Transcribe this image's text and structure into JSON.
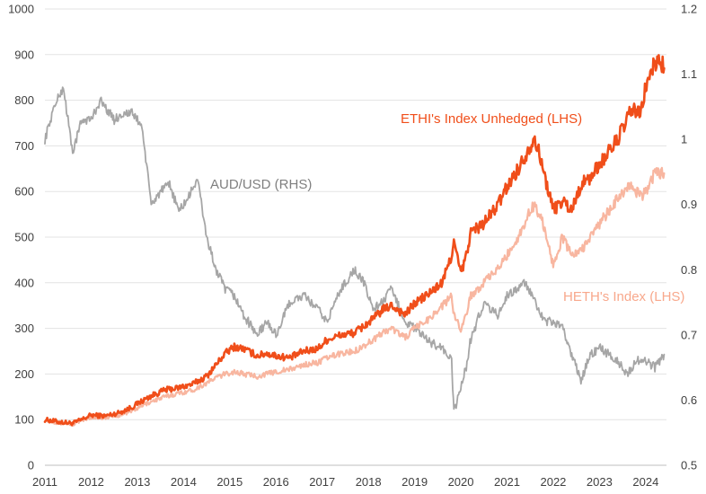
{
  "chart_data": {
    "type": "line",
    "title": "",
    "xlabel": "",
    "ylabel": "",
    "y2label": "",
    "x_ticks": [
      "2011",
      "2012",
      "2013",
      "2014",
      "2015",
      "2016",
      "2017",
      "2018",
      "2019",
      "2020",
      "2021",
      "2022",
      "2023",
      "2024"
    ],
    "y_left_ticks": [
      "0",
      "100",
      "200",
      "300",
      "400",
      "500",
      "600",
      "700",
      "800",
      "900",
      "1000"
    ],
    "y_right_ticks": [
      "0.5",
      "0.6",
      "0.7",
      "0.8",
      "0.9",
      "1",
      "1.1",
      "1.2"
    ],
    "ylim_left": [
      0,
      1000
    ],
    "ylim_right": [
      0.5,
      1.2
    ],
    "xlim": [
      2011.0,
      2024.45
    ],
    "grid": "horizontal",
    "legend": "none",
    "series": [
      {
        "name": "ETHI's Index Unhedged (LHS)",
        "axis": "left",
        "color": "#F04E1A",
        "x": [
          2011.0,
          2011.3,
          2011.6,
          2011.8,
          2012.0,
          2012.3,
          2012.6,
          2012.9,
          2013.0,
          2013.3,
          2013.6,
          2013.9,
          2014.2,
          2014.5,
          2014.7,
          2014.9,
          2015.1,
          2015.3,
          2015.6,
          2015.8,
          2016.0,
          2016.3,
          2016.6,
          2016.9,
          2017.1,
          2017.4,
          2017.7,
          2017.9,
          2018.1,
          2018.3,
          2018.5,
          2018.8,
          2019.0,
          2019.3,
          2019.6,
          2019.8,
          2019.85,
          2020.0,
          2020.15,
          2020.2,
          2020.5,
          2020.8,
          2021.0,
          2021.3,
          2021.5,
          2021.6,
          2021.75,
          2021.9,
          2022.0,
          2022.2,
          2022.4,
          2022.6,
          2022.8,
          2023.0,
          2023.3,
          2023.5,
          2023.7,
          2023.9,
          2024.0,
          2024.2,
          2024.3,
          2024.4
        ],
        "y": [
          100,
          95,
          92,
          100,
          110,
          108,
          115,
          128,
          135,
          152,
          165,
          170,
          178,
          195,
          220,
          245,
          260,
          255,
          240,
          245,
          240,
          235,
          250,
          255,
          275,
          285,
          290,
          305,
          320,
          340,
          350,
          330,
          355,
          375,
          400,
          460,
          490,
          420,
          470,
          510,
          530,
          570,
          610,
          660,
          700,
          720,
          660,
          600,
          560,
          580,
          560,
          615,
          630,
          660,
          700,
          735,
          780,
          770,
          830,
          880,
          890,
          870
        ]
      },
      {
        "name": "HETH's Index (LHS)",
        "axis": "left",
        "color": "#F8B6A0",
        "x": [
          2011.0,
          2011.3,
          2011.6,
          2011.8,
          2012.0,
          2012.3,
          2012.6,
          2012.9,
          2013.0,
          2013.3,
          2013.6,
          2013.9,
          2014.2,
          2014.5,
          2014.7,
          2014.9,
          2015.1,
          2015.3,
          2015.6,
          2015.8,
          2016.0,
          2016.3,
          2016.6,
          2016.9,
          2017.1,
          2017.4,
          2017.7,
          2017.9,
          2018.1,
          2018.3,
          2018.5,
          2018.8,
          2019.0,
          2019.3,
          2019.6,
          2019.8,
          2019.85,
          2020.0,
          2020.15,
          2020.2,
          2020.5,
          2020.8,
          2021.0,
          2021.3,
          2021.5,
          2021.6,
          2021.75,
          2021.9,
          2022.0,
          2022.2,
          2022.4,
          2022.6,
          2022.8,
          2023.0,
          2023.3,
          2023.5,
          2023.7,
          2023.9,
          2024.0,
          2024.2,
          2024.3,
          2024.4
        ],
        "y": [
          100,
          93,
          90,
          98,
          105,
          104,
          110,
          120,
          125,
          140,
          150,
          158,
          165,
          180,
          192,
          200,
          205,
          200,
          195,
          200,
          205,
          210,
          220,
          225,
          235,
          245,
          250,
          262,
          275,
          290,
          300,
          280,
          300,
          320,
          350,
          370,
          330,
          300,
          340,
          370,
          400,
          430,
          460,
          510,
          560,
          570,
          540,
          480,
          440,
          500,
          460,
          470,
          500,
          530,
          570,
          600,
          610,
          590,
          600,
          640,
          640,
          640
        ]
      },
      {
        "name": "AUD/USD (RHS)",
        "axis": "right",
        "color": "#A6A6A6",
        "x": [
          2011.0,
          2011.2,
          2011.4,
          2011.6,
          2011.8,
          2012.0,
          2012.2,
          2012.5,
          2012.7,
          2012.9,
          2013.1,
          2013.3,
          2013.5,
          2013.7,
          2013.9,
          2014.1,
          2014.3,
          2014.5,
          2014.7,
          2014.9,
          2015.1,
          2015.3,
          2015.6,
          2015.8,
          2016.0,
          2016.3,
          2016.6,
          2016.9,
          2017.1,
          2017.4,
          2017.7,
          2017.9,
          2018.1,
          2018.3,
          2018.5,
          2018.8,
          2019.0,
          2019.3,
          2019.6,
          2019.8,
          2019.85,
          2020.0,
          2020.15,
          2020.2,
          2020.5,
          2020.8,
          2021.0,
          2021.2,
          2021.4,
          2021.6,
          2021.8,
          2022.0,
          2022.2,
          2022.4,
          2022.6,
          2022.8,
          2023.0,
          2023.2,
          2023.4,
          2023.6,
          2023.8,
          2024.0,
          2024.2,
          2024.4
        ],
        "y": [
          1.0,
          1.05,
          1.08,
          0.98,
          1.03,
          1.03,
          1.06,
          1.03,
          1.04,
          1.04,
          1.02,
          0.9,
          0.92,
          0.93,
          0.89,
          0.91,
          0.94,
          0.85,
          0.8,
          0.77,
          0.76,
          0.73,
          0.7,
          0.72,
          0.7,
          0.75,
          0.76,
          0.74,
          0.72,
          0.77,
          0.8,
          0.78,
          0.74,
          0.75,
          0.77,
          0.72,
          0.71,
          0.69,
          0.68,
          0.66,
          0.58,
          0.62,
          0.66,
          0.69,
          0.75,
          0.73,
          0.76,
          0.77,
          0.78,
          0.75,
          0.72,
          0.72,
          0.71,
          0.67,
          0.63,
          0.67,
          0.68,
          0.67,
          0.66,
          0.64,
          0.66,
          0.66,
          0.65,
          0.67
        ]
      }
    ],
    "annotations": [
      {
        "text": "ETHI's Index Unhedged (LHS)",
        "series": "ETHI's Index Unhedged (LHS)"
      },
      {
        "text": "AUD/USD (RHS)",
        "series": "AUD/USD (RHS)"
      },
      {
        "text": "HETH's Index (LHS)",
        "series": "HETH's Index (LHS)"
      }
    ]
  }
}
